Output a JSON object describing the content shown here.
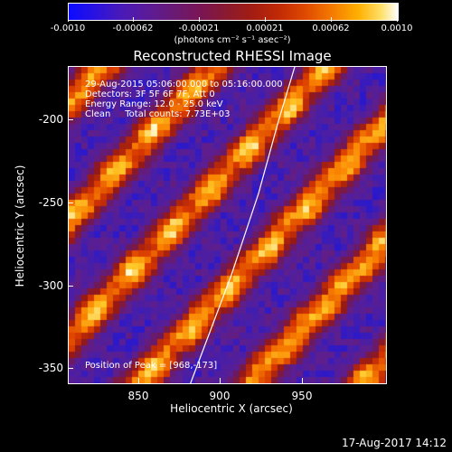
{
  "colorbar": {
    "ticks": [
      "-0.0010",
      "-0.00062",
      "-0.00021",
      "0.00021",
      "0.00062",
      "0.0010"
    ],
    "units": "(photons cm⁻² s⁻¹ asec⁻²)"
  },
  "plot": {
    "title": "Reconstructed RHESSI Image",
    "info_lines": [
      "29-Aug-2015 05:06:00.000 to 05:16:00.000",
      "Detectors: 3F 5F 6F 7F, Att 0",
      "Energy Range: 12.0 - 25.0 keV",
      "Clean     Total counts: 7.73E+03"
    ],
    "peak_text": "Position of Peak = [968,-173]",
    "x_axis_title": "Heliocentric X (arcsec)",
    "y_axis_title": "Heliocentric Y (arcsec)",
    "x_ticks": [
      "850",
      "900",
      "950"
    ],
    "y_ticks": [
      "-200",
      "-250",
      "-300",
      "-350"
    ],
    "x_range": [
      808,
      1000
    ],
    "y_range": [
      -365,
      -173
    ]
  },
  "footer": {
    "timestamp": "17-Aug-2017 14:12"
  },
  "colors": {
    "background": "#000000",
    "limb_line": "#ffffff"
  }
}
